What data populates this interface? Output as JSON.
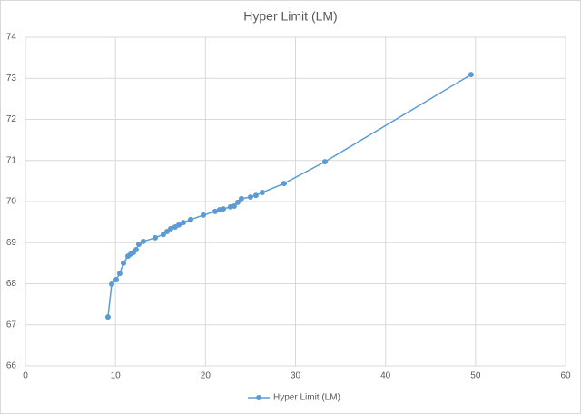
{
  "chart_data": {
    "type": "scatter",
    "title": "Hyper Limit (LM)",
    "series": [
      {
        "name": "Hyper Limit (LM)",
        "color": "#5b9bd5",
        "x": [
          9.17,
          9.58,
          10.08,
          10.48,
          10.89,
          11.39,
          11.69,
          11.99,
          12.3,
          12.6,
          13.1,
          14.42,
          15.32,
          15.73,
          16.13,
          16.63,
          17.04,
          17.54,
          18.35,
          19.76,
          21.07,
          21.57,
          21.98,
          22.78,
          23.19,
          23.59,
          23.99,
          25.0,
          25.6,
          26.31,
          28.73,
          33.27,
          49.5
        ],
        "values": [
          67.19,
          67.99,
          68.1,
          68.25,
          68.5,
          68.67,
          68.72,
          68.76,
          68.83,
          68.96,
          69.03,
          69.12,
          69.2,
          69.27,
          69.34,
          69.38,
          69.43,
          69.49,
          69.56,
          69.67,
          69.76,
          69.8,
          69.82,
          69.87,
          69.89,
          69.98,
          70.07,
          70.11,
          70.15,
          70.22,
          70.44,
          70.97,
          73.09
        ]
      }
    ],
    "xlim": [
      0,
      60
    ],
    "xticks": [
      0,
      10,
      20,
      30,
      40,
      50,
      60
    ],
    "ylim": [
      66,
      74
    ],
    "yticks": [
      66,
      67,
      68,
      69,
      70,
      71,
      72,
      73,
      74
    ],
    "grid": true,
    "legend": "bottom"
  }
}
